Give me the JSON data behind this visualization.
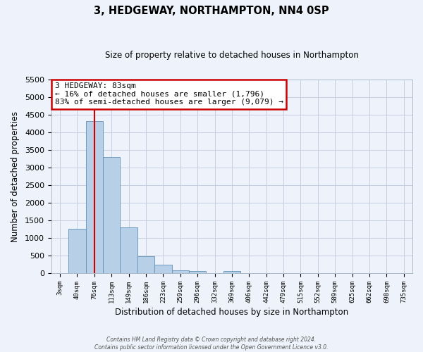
{
  "title": "3, HEDGEWAY, NORTHAMPTON, NN4 0SP",
  "subtitle": "Size of property relative to detached houses in Northampton",
  "xlabel": "Distribution of detached houses by size in Northampton",
  "ylabel": "Number of detached properties",
  "bar_labels": [
    "3sqm",
    "40sqm",
    "76sqm",
    "113sqm",
    "149sqm",
    "186sqm",
    "223sqm",
    "259sqm",
    "296sqm",
    "332sqm",
    "369sqm",
    "406sqm",
    "442sqm",
    "479sqm",
    "515sqm",
    "552sqm",
    "589sqm",
    "625sqm",
    "662sqm",
    "698sqm",
    "735sqm"
  ],
  "bar_values": [
    0,
    1270,
    4330,
    3300,
    1300,
    480,
    240,
    90,
    70,
    0,
    60,
    0,
    0,
    0,
    0,
    0,
    0,
    0,
    0,
    0,
    0
  ],
  "bar_color": "#b8cfe8",
  "bar_edge_color": "#6090b8",
  "ylim": [
    0,
    5500
  ],
  "yticks": [
    0,
    500,
    1000,
    1500,
    2000,
    2500,
    3000,
    3500,
    4000,
    4500,
    5000,
    5500
  ],
  "vline_x_index": 2,
  "vline_color": "#cc0000",
  "annotation_title": "3 HEDGEWAY: 83sqm",
  "annotation_line1": "← 16% of detached houses are smaller (1,796)",
  "annotation_line2": "83% of semi-detached houses are larger (9,079) →",
  "annotation_box_color": "#ffffff",
  "annotation_box_edge": "#cc0000",
  "footer_line1": "Contains HM Land Registry data © Crown copyright and database right 2024.",
  "footer_line2": "Contains public sector information licensed under the Open Government Licence v3.0.",
  "background_color": "#eef2fa",
  "grid_color": "#c5cfe0"
}
